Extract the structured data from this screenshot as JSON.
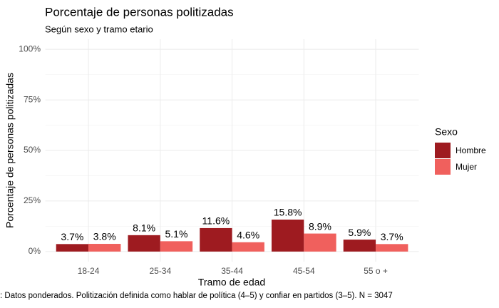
{
  "chart_data": {
    "type": "bar",
    "title": "Porcentaje de personas politizadas",
    "subtitle": "Según sexo y tramo etario",
    "x_label": "Tramo de edad",
    "y_label": "Porcentaje de personas politizadas",
    "caption": ": Datos ponderados. Politización definida como hablar de política (4–5) y confiar en partidos (3–5). N = 3047",
    "legend_title": "Sexo",
    "legend_position": "right",
    "categories": [
      "18-24",
      "25-34",
      "35-44",
      "45-54",
      "55 o +"
    ],
    "series": [
      {
        "name": "Hombre",
        "color": "#9e1b20",
        "values": [
          3.7,
          8.1,
          11.6,
          15.8,
          5.9
        ],
        "value_labels": [
          "3.7%",
          "8.1%",
          "11.6%",
          "15.8%",
          "5.9%"
        ]
      },
      {
        "name": "Mujer",
        "color": "#f0605d",
        "values": [
          3.8,
          5.1,
          4.6,
          8.9,
          3.7
        ],
        "value_labels": [
          "3.8%",
          "5.1%",
          "4.6%",
          "8.9%",
          "3.7%"
        ]
      }
    ],
    "ylim": [
      -5,
      105
    ],
    "yticks": [
      {
        "value": 0,
        "label": "0%"
      },
      {
        "value": 25,
        "label": "25%"
      },
      {
        "value": 50,
        "label": "50%"
      },
      {
        "value": 75,
        "label": "75%"
      },
      {
        "value": 100,
        "label": "100%"
      }
    ],
    "yminor": [
      12.5,
      37.5,
      62.5,
      87.5
    ],
    "grid": true
  }
}
